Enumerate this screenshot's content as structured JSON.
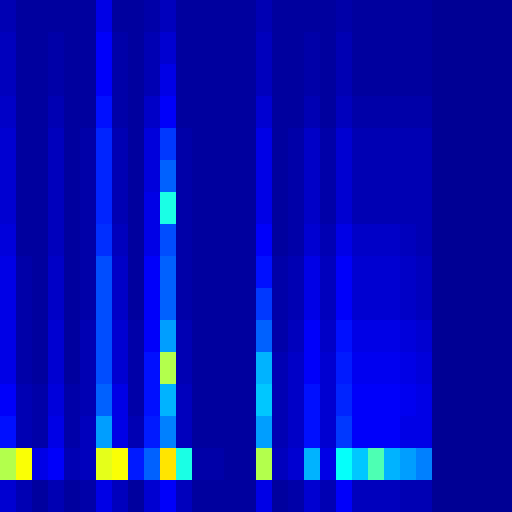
{
  "chart_data": {
    "type": "heatmap",
    "tick_labels": false,
    "color_range": [
      0,
      1
    ],
    "values": [
      [
        0.05,
        0.03,
        0.03,
        0.03,
        0.03,
        0.03,
        0.1,
        0.03,
        0.03,
        0.04,
        0.06,
        0.03,
        0.03,
        0.03,
        0.03,
        0.03,
        0.05,
        0.03,
        0.03,
        0.03,
        0.03,
        0.04,
        0.03,
        0.03,
        0.03,
        0.03,
        0.03,
        0.02,
        0.02,
        0.02,
        0.02,
        0.02
      ],
      [
        0.06,
        0.03,
        0.03,
        0.04,
        0.03,
        0.03,
        0.12,
        0.04,
        0.03,
        0.05,
        0.08,
        0.03,
        0.03,
        0.03,
        0.03,
        0.03,
        0.06,
        0.03,
        0.03,
        0.04,
        0.03,
        0.05,
        0.03,
        0.03,
        0.03,
        0.03,
        0.03,
        0.02,
        0.02,
        0.02,
        0.02,
        0.02
      ],
      [
        0.06,
        0.03,
        0.03,
        0.04,
        0.03,
        0.03,
        0.12,
        0.04,
        0.03,
        0.05,
        0.1,
        0.03,
        0.03,
        0.03,
        0.03,
        0.03,
        0.06,
        0.03,
        0.03,
        0.04,
        0.03,
        0.05,
        0.03,
        0.03,
        0.03,
        0.03,
        0.03,
        0.02,
        0.02,
        0.02,
        0.02,
        0.02
      ],
      [
        0.07,
        0.03,
        0.03,
        0.05,
        0.03,
        0.03,
        0.14,
        0.04,
        0.03,
        0.07,
        0.12,
        0.03,
        0.03,
        0.03,
        0.03,
        0.03,
        0.08,
        0.03,
        0.03,
        0.05,
        0.03,
        0.06,
        0.04,
        0.04,
        0.04,
        0.04,
        0.04,
        0.02,
        0.02,
        0.02,
        0.02,
        0.02
      ],
      [
        0.08,
        0.03,
        0.03,
        0.06,
        0.03,
        0.04,
        0.16,
        0.05,
        0.03,
        0.09,
        0.18,
        0.04,
        0.03,
        0.03,
        0.03,
        0.03,
        0.1,
        0.03,
        0.04,
        0.07,
        0.04,
        0.08,
        0.05,
        0.05,
        0.05,
        0.05,
        0.05,
        0.02,
        0.02,
        0.02,
        0.02,
        0.02
      ],
      [
        0.08,
        0.03,
        0.03,
        0.06,
        0.03,
        0.04,
        0.16,
        0.05,
        0.03,
        0.09,
        0.22,
        0.04,
        0.03,
        0.03,
        0.03,
        0.03,
        0.1,
        0.03,
        0.04,
        0.07,
        0.04,
        0.08,
        0.05,
        0.05,
        0.05,
        0.05,
        0.05,
        0.02,
        0.02,
        0.02,
        0.02,
        0.02
      ],
      [
        0.08,
        0.03,
        0.03,
        0.06,
        0.03,
        0.04,
        0.16,
        0.05,
        0.03,
        0.1,
        0.4,
        0.04,
        0.03,
        0.03,
        0.03,
        0.03,
        0.1,
        0.03,
        0.04,
        0.07,
        0.04,
        0.08,
        0.05,
        0.05,
        0.05,
        0.05,
        0.05,
        0.02,
        0.02,
        0.02,
        0.02,
        0.02
      ],
      [
        0.09,
        0.03,
        0.03,
        0.06,
        0.03,
        0.04,
        0.17,
        0.06,
        0.03,
        0.1,
        0.2,
        0.04,
        0.03,
        0.03,
        0.03,
        0.03,
        0.12,
        0.03,
        0.04,
        0.08,
        0.05,
        0.1,
        0.07,
        0.07,
        0.07,
        0.06,
        0.05,
        0.02,
        0.02,
        0.02,
        0.02,
        0.02
      ],
      [
        0.1,
        0.04,
        0.03,
        0.07,
        0.03,
        0.04,
        0.2,
        0.07,
        0.03,
        0.12,
        0.22,
        0.04,
        0.03,
        0.03,
        0.03,
        0.03,
        0.14,
        0.04,
        0.05,
        0.1,
        0.06,
        0.12,
        0.08,
        0.08,
        0.08,
        0.07,
        0.06,
        0.02,
        0.02,
        0.02,
        0.02,
        0.02
      ],
      [
        0.1,
        0.04,
        0.03,
        0.07,
        0.03,
        0.04,
        0.2,
        0.07,
        0.03,
        0.12,
        0.22,
        0.04,
        0.03,
        0.03,
        0.03,
        0.03,
        0.18,
        0.04,
        0.05,
        0.1,
        0.06,
        0.12,
        0.08,
        0.08,
        0.08,
        0.07,
        0.06,
        0.02,
        0.02,
        0.02,
        0.02,
        0.02
      ],
      [
        0.1,
        0.04,
        0.03,
        0.08,
        0.03,
        0.05,
        0.2,
        0.08,
        0.04,
        0.12,
        0.28,
        0.05,
        0.03,
        0.03,
        0.03,
        0.03,
        0.22,
        0.04,
        0.06,
        0.12,
        0.07,
        0.14,
        0.1,
        0.1,
        0.1,
        0.09,
        0.08,
        0.02,
        0.02,
        0.02,
        0.02,
        0.02
      ],
      [
        0.1,
        0.04,
        0.03,
        0.08,
        0.03,
        0.05,
        0.2,
        0.08,
        0.04,
        0.14,
        0.55,
        0.05,
        0.03,
        0.03,
        0.03,
        0.03,
        0.3,
        0.05,
        0.07,
        0.12,
        0.08,
        0.15,
        0.11,
        0.11,
        0.11,
        0.1,
        0.09,
        0.02,
        0.02,
        0.02,
        0.02,
        0.02
      ],
      [
        0.12,
        0.05,
        0.04,
        0.09,
        0.04,
        0.05,
        0.22,
        0.1,
        0.04,
        0.14,
        0.3,
        0.06,
        0.03,
        0.03,
        0.03,
        0.03,
        0.32,
        0.05,
        0.07,
        0.14,
        0.08,
        0.16,
        0.12,
        0.12,
        0.12,
        0.11,
        0.1,
        0.02,
        0.02,
        0.02,
        0.02,
        0.02
      ],
      [
        0.14,
        0.05,
        0.04,
        0.1,
        0.04,
        0.06,
        0.28,
        0.1,
        0.05,
        0.15,
        0.25,
        0.06,
        0.03,
        0.03,
        0.03,
        0.03,
        0.28,
        0.05,
        0.07,
        0.14,
        0.08,
        0.18,
        0.12,
        0.12,
        0.12,
        0.1,
        0.1,
        0.02,
        0.02,
        0.02,
        0.02,
        0.02
      ],
      [
        0.55,
        0.62,
        0.1,
        0.12,
        0.05,
        0.06,
        0.6,
        0.62,
        0.15,
        0.22,
        0.65,
        0.4,
        0.04,
        0.04,
        0.03,
        0.03,
        0.55,
        0.06,
        0.08,
        0.3,
        0.1,
        0.38,
        0.32,
        0.45,
        0.3,
        0.28,
        0.25,
        0.02,
        0.02,
        0.02,
        0.02,
        0.02
      ],
      [
        0.08,
        0.05,
        0.03,
        0.05,
        0.03,
        0.04,
        0.1,
        0.06,
        0.03,
        0.08,
        0.12,
        0.06,
        0.03,
        0.03,
        0.03,
        0.03,
        0.1,
        0.03,
        0.04,
        0.08,
        0.05,
        0.12,
        0.06,
        0.06,
        0.06,
        0.05,
        0.05,
        0.02,
        0.02,
        0.02,
        0.02,
        0.02
      ]
    ]
  }
}
